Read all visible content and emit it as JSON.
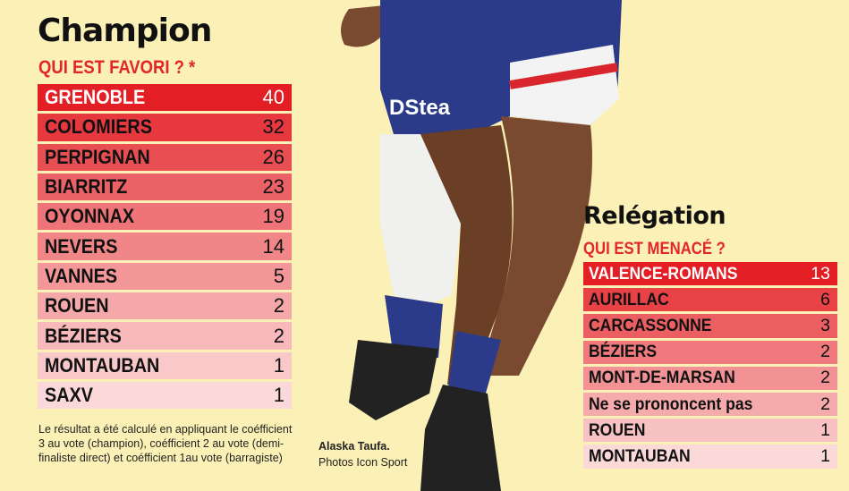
{
  "champion": {
    "title": "Champion",
    "subtitle": "QUI EST FAVORI ? *"
  },
  "relegation": {
    "title": "Relégation",
    "subtitle": "QUI EST MENACÉ ?"
  },
  "note": "Le résultat a été calculé en appliquant le coéf­ficient 3 au vote (champion), coéfficient 2 au vote (demi-finaliste direct) et coéfficient 1au vote (barragiste)",
  "caption": {
    "name": "Alaska Taufa.",
    "credit": "Photos Icon Sport"
  },
  "colors": {
    "background": "#fbf0b5",
    "accent": "#e3262b",
    "max": "#e31e24",
    "min": "#fbd9d9"
  },
  "chart_data": [
    {
      "type": "table",
      "title": "Champion",
      "subtitle": "QUI EST FAVORI ? *",
      "categories": [
        "GRENOBLE",
        "COLOMIERS",
        "PERPIGNAN",
        "BIARRITZ",
        "OYONNAX",
        "NEVERS",
        "VANNES",
        "ROUEN",
        "BÉZIERS",
        "MONTAUBAN",
        "SAXV"
      ],
      "values": [
        40,
        32,
        26,
        23,
        19,
        14,
        5,
        2,
        2,
        1,
        1
      ]
    },
    {
      "type": "table",
      "title": "Relégation",
      "subtitle": "QUI EST MENACÉ ?",
      "categories": [
        "VALENCE-ROMANS",
        "AURILLAC",
        "CARCASSONNE",
        "BÉZIERS",
        "MONT-DE-MARSAN",
        "Ne se prononcent pas",
        "ROUEN",
        "MONTAUBAN"
      ],
      "values": [
        13,
        6,
        3,
        2,
        2,
        2,
        1,
        1
      ]
    }
  ]
}
